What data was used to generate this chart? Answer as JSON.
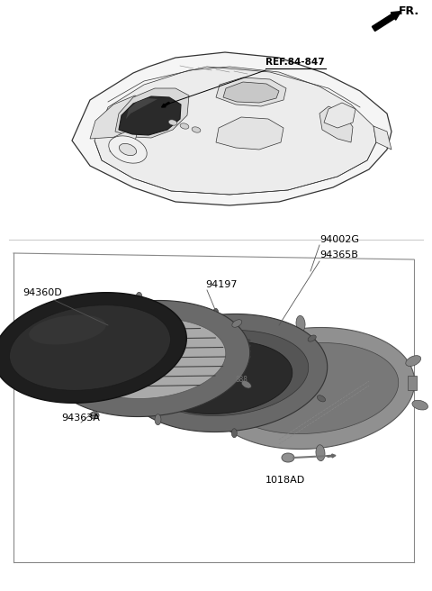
{
  "bg": "#ffffff",
  "fr_text": "FR.",
  "ref_text": "REF.84-847",
  "label_94002G": "94002G",
  "label_94365B": "94365B",
  "label_94197": "94197",
  "label_94360D": "94360D",
  "label_94363A": "94363A",
  "label_1018AD": "1018AD",
  "lc": "#333333",
  "gray1": "#aaaaaa",
  "gray2": "#888888",
  "gray3": "#666666",
  "gray4": "#444444",
  "gray5": "#222222",
  "dgray": "#555555",
  "lgray": "#bbbbbb",
  "dark_part": "#4a4a4a",
  "mid_part": "#787878",
  "light_part": "#aaaaaa"
}
